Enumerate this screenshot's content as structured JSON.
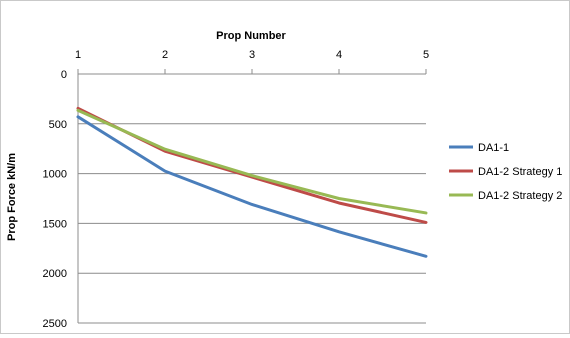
{
  "chart_data": {
    "type": "line",
    "xlabel": "Prop Number",
    "ylabel": "Prop Force kN/m",
    "x_position": "top",
    "y_reversed": true,
    "categories": [
      "1",
      "2",
      "3",
      "4",
      "5"
    ],
    "ylim": [
      0,
      2500
    ],
    "yticks": [
      "0",
      "500",
      "1000",
      "1500",
      "2000",
      "2500"
    ],
    "grid": "horizontal",
    "legend_position": "right",
    "series": [
      {
        "name": "DA1-1",
        "color": "#4a7ebb",
        "values": [
          430,
          975,
          1310,
          1585,
          1830
        ]
      },
      {
        "name": "DA1-2 Strategy 1",
        "color": "#be4b48",
        "values": [
          345,
          775,
          1035,
          1295,
          1490
        ]
      },
      {
        "name": "DA1-2 Strategy 2",
        "color": "#98b954",
        "values": [
          365,
          755,
          1020,
          1250,
          1395
        ]
      }
    ]
  }
}
